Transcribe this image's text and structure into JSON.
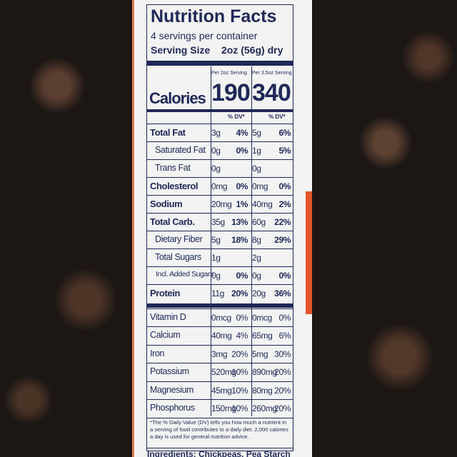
{
  "label": {
    "title": "Nutrition Facts",
    "servings": "4 servings per container",
    "serving_size_label": "Serving Size",
    "serving_size": "2oz (56g) dry",
    "columns": [
      "Per 2oz Serving",
      "Per 3.5oz Serving"
    ],
    "calories_label": "Calories",
    "calories": [
      "190",
      "340"
    ],
    "dv_header": [
      "% DV*",
      "% DV*"
    ],
    "rows": [
      {
        "name": "Total Fat",
        "style": "bold",
        "cells": [
          "3g",
          "4%",
          "5g",
          "6%"
        ]
      },
      {
        "name": "Saturated Fat",
        "style": "indent",
        "cells": [
          "0g",
          "0%",
          "1g",
          "5%"
        ]
      },
      {
        "name": "Trans Fat",
        "style": "indent",
        "cells": [
          "0g",
          null,
          "0g",
          null
        ]
      },
      {
        "name": "Cholesterol",
        "style": "bold",
        "cells": [
          "0mg",
          "0%",
          "0mg",
          "0%"
        ]
      },
      {
        "name": "Sodium",
        "style": "bold",
        "cells": [
          "20mg",
          "1%",
          "40mg",
          "2%"
        ]
      },
      {
        "name": "Total Carb.",
        "style": "bold",
        "cells": [
          "35g",
          "13%",
          "60g",
          "22%"
        ]
      },
      {
        "name": "Dietary Fiber",
        "style": "indent",
        "cells": [
          "5g",
          "18%",
          "8g",
          "29%"
        ]
      },
      {
        "name": "Total Sugars",
        "style": "indent",
        "cells": [
          "1g",
          null,
          "2g",
          null
        ]
      },
      {
        "name": "Incl. Added Sugars",
        "style": "indent2",
        "cells": [
          "0g",
          "0%",
          "0g",
          "0%"
        ]
      },
      {
        "name": "Protein",
        "style": "bold",
        "cells": [
          "11g",
          "20%",
          "20g",
          "36%"
        ]
      }
    ],
    "minerals": [
      {
        "name": "Vitamin D",
        "cells": [
          "0mcg",
          "0%",
          "0mcg",
          "0%"
        ]
      },
      {
        "name": "Calcium",
        "cells": [
          "40mg",
          "4%",
          "65mg",
          "6%"
        ]
      },
      {
        "name": "Iron",
        "cells": [
          "3mg",
          "20%",
          "5mg",
          "30%"
        ]
      },
      {
        "name": "Potassium",
        "cells": [
          "520mg",
          "10%",
          "890mg",
          "20%"
        ]
      },
      {
        "name": "Magnesium",
        "cells": [
          "45mg",
          "10%",
          "80mg",
          "20%"
        ]
      },
      {
        "name": "Phosphorus",
        "cells": [
          "150mg",
          "10%",
          "260mg",
          "20%"
        ]
      }
    ],
    "footnote": "*The % Daily Value (DV) tells you how much a nutrient in a serving of food contributes to a daily diet. 2,000 calories a day is used for general nutrition advice.",
    "ingredients": "Ingredients: Chickpeas, Pea Starch"
  }
}
